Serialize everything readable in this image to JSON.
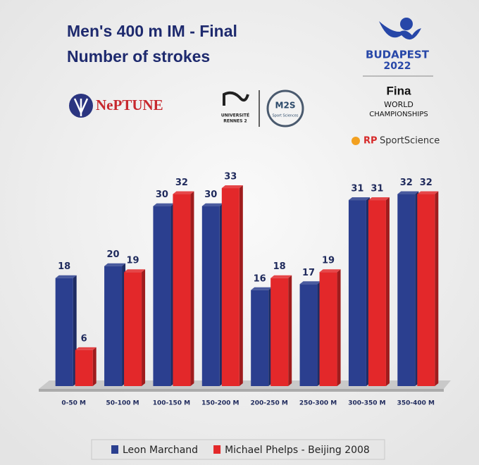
{
  "chart_data": {
    "type": "bar3d",
    "title": "Men's 400 m IM - Final",
    "subtitle": "Number of strokes",
    "categories": [
      "0-50 M",
      "50-100 M",
      "100-150 M",
      "150-200 M",
      "200-250 M",
      "250-300 M",
      "300-350 M",
      "350-400 M"
    ],
    "series": [
      {
        "name": "Leon Marchand",
        "color": "#2b3f8f",
        "values": [
          18,
          20,
          30,
          30,
          16,
          17,
          31,
          32
        ]
      },
      {
        "name": "Michael Phelps - Beijing 2008",
        "color": "#e3282a",
        "values": [
          6,
          19,
          32,
          33,
          18,
          19,
          31,
          32
        ]
      }
    ],
    "ylim": [
      0,
      35
    ],
    "legend": "bottom"
  },
  "logos": {
    "neptune": "NePTUNE",
    "university": "UNIVERSITÉ",
    "rennes": "RENNES 2",
    "m2s": "M2S",
    "m2s_sub": "Sport Sciences",
    "budapest": "BUDAPEST",
    "year": "2022",
    "fina": "Fina",
    "world": "WORLD",
    "championships": "CHAMPIONSHIPS",
    "rp": "RP",
    "sportscience": "SportScience"
  }
}
